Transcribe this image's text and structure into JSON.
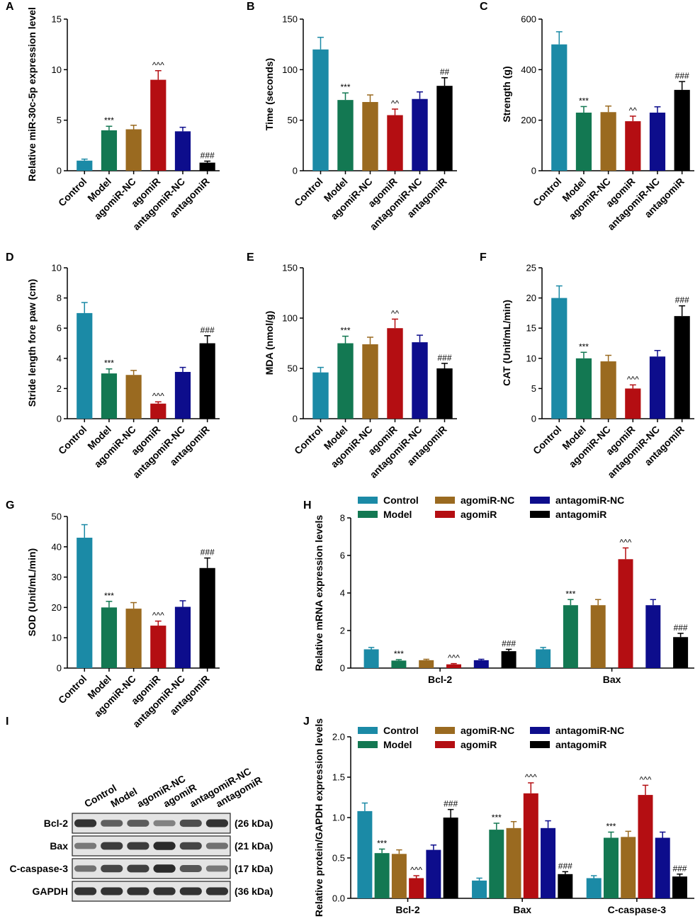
{
  "colors": {
    "Control": "#1b8aa6",
    "Model": "#137852",
    "agomiR-NC": "#9a6a20",
    "agomiR": "#b40e12",
    "antagomiR-NC": "#0d0d8c",
    "antagomiR": "#000000"
  },
  "groups": [
    "Control",
    "Model",
    "agomiR-NC",
    "agomiR",
    "antagomiR-NC",
    "antagomiR"
  ],
  "chart_data": [
    {
      "panel": "A",
      "type": "bar",
      "categories": [
        "Control",
        "Model",
        "agomiR-NC",
        "agomiR",
        "antagomiR-NC",
        "antagomiR"
      ],
      "values": [
        1.0,
        4.0,
        4.1,
        9.0,
        3.9,
        0.8
      ],
      "errors": [
        0.15,
        0.4,
        0.4,
        0.9,
        0.4,
        0.15
      ],
      "labels": [
        "",
        "***",
        "",
        "^^^",
        "",
        "###"
      ],
      "ylabel": "Relative miR-30c-5p expression level",
      "ylim": [
        0,
        15
      ],
      "yticks": [
        0,
        5,
        10,
        15
      ]
    },
    {
      "panel": "B",
      "type": "bar",
      "categories": [
        "Control",
        "Model",
        "agomiR-NC",
        "agomiR",
        "antagomiR-NC",
        "antagomiR"
      ],
      "values": [
        120,
        70,
        68,
        55,
        71,
        84
      ],
      "errors": [
        12,
        7,
        7,
        6,
        7,
        8
      ],
      "labels": [
        "",
        "***",
        "",
        "^^",
        "",
        "##"
      ],
      "ylabel": "Time (seconds)",
      "ylim": [
        0,
        150
      ],
      "yticks": [
        0,
        50,
        100,
        150
      ]
    },
    {
      "panel": "C",
      "type": "bar",
      "categories": [
        "Control",
        "Model",
        "agomiR-NC",
        "agomiR",
        "antagomiR-NC",
        "antagomiR"
      ],
      "values": [
        500,
        230,
        232,
        196,
        230,
        320
      ],
      "errors": [
        50,
        24,
        24,
        20,
        23,
        33
      ],
      "labels": [
        "",
        "***",
        "",
        "^^",
        "",
        "###"
      ],
      "ylabel": "Strength (g)",
      "ylim": [
        0,
        600
      ],
      "yticks": [
        0,
        200,
        400,
        600
      ]
    },
    {
      "panel": "D",
      "type": "bar",
      "categories": [
        "Control",
        "Model",
        "agomiR-NC",
        "agomiR",
        "antagomiR-NC",
        "antagomiR"
      ],
      "values": [
        7.0,
        3.0,
        2.9,
        1.0,
        3.1,
        5.0
      ],
      "errors": [
        0.7,
        0.3,
        0.3,
        0.12,
        0.3,
        0.5
      ],
      "labels": [
        "",
        "***",
        "",
        "^^^",
        "",
        "###"
      ],
      "ylabel": "Stride length fore paw (cm)",
      "ylim": [
        0,
        10
      ],
      "yticks": [
        0,
        2,
        4,
        6,
        8,
        10
      ]
    },
    {
      "panel": "E",
      "type": "bar",
      "categories": [
        "Control",
        "Model",
        "agomiR-NC",
        "agomiR",
        "antagomiR-NC",
        "antagomiR"
      ],
      "values": [
        46,
        75,
        74,
        90,
        76,
        50
      ],
      "errors": [
        5,
        7,
        7,
        9,
        7,
        5
      ],
      "labels": [
        "",
        "***",
        "",
        "^^",
        "",
        "###"
      ],
      "ylabel": "MDA (nmol/g)",
      "ylim": [
        0,
        150
      ],
      "yticks": [
        0,
        50,
        100,
        150
      ]
    },
    {
      "panel": "F",
      "type": "bar",
      "categories": [
        "Control",
        "Model",
        "agomiR-NC",
        "agomiR",
        "antagomiR-NC",
        "antagomiR"
      ],
      "values": [
        20,
        10,
        9.5,
        5,
        10.3,
        17
      ],
      "errors": [
        2,
        1,
        1,
        0.6,
        1,
        1.7
      ],
      "labels": [
        "",
        "***",
        "",
        "^^^",
        "",
        "###"
      ],
      "ylabel": "CAT (Unit/mL/min)",
      "ylim": [
        0,
        25
      ],
      "yticks": [
        0,
        5,
        10,
        15,
        20,
        25
      ]
    },
    {
      "panel": "G",
      "type": "bar",
      "categories": [
        "Control",
        "Model",
        "agomiR-NC",
        "agomiR",
        "antagomiR-NC",
        "antagomiR"
      ],
      "values": [
        43,
        20,
        19.6,
        14,
        20.2,
        33
      ],
      "errors": [
        4.3,
        2,
        2,
        1.5,
        2,
        3.3
      ],
      "labels": [
        "",
        "***",
        "",
        "^^^",
        "",
        "###"
      ],
      "ylabel": "SOD (Unit/mL/min)",
      "ylim": [
        0,
        50
      ],
      "yticks": [
        0,
        10,
        20,
        30,
        40,
        50
      ]
    },
    {
      "panel": "H",
      "type": "bar",
      "categories": [
        "Bcl-2",
        "Bax"
      ],
      "ylabel": "Relative mRNA expression levels",
      "ylim": [
        0,
        8
      ],
      "yticks": [
        0,
        2,
        4,
        6,
        8
      ],
      "legend": [
        "Control",
        "Model",
        "agomiR-NC",
        "agomiR",
        "antagomiR-NC",
        "antagomiR"
      ],
      "series": [
        {
          "name": "Control",
          "values": [
            1.0,
            1.0
          ],
          "errors": [
            0.1,
            0.1
          ],
          "labels": [
            "",
            ""
          ]
        },
        {
          "name": "Model",
          "values": [
            0.4,
            3.35
          ],
          "errors": [
            0.05,
            0.3
          ],
          "labels": [
            "***",
            "***"
          ]
        },
        {
          "name": "agomiR-NC",
          "values": [
            0.42,
            3.35
          ],
          "errors": [
            0.05,
            0.3
          ],
          "labels": [
            "",
            ""
          ]
        },
        {
          "name": "agomiR",
          "values": [
            0.2,
            5.8
          ],
          "errors": [
            0.04,
            0.6
          ],
          "labels": [
            "^^^",
            "^^^"
          ]
        },
        {
          "name": "antagomiR-NC",
          "values": [
            0.42,
            3.35
          ],
          "errors": [
            0.05,
            0.3
          ],
          "labels": [
            "",
            ""
          ]
        },
        {
          "name": "antagomiR",
          "values": [
            0.9,
            1.65
          ],
          "errors": [
            0.1,
            0.2
          ],
          "labels": [
            "###",
            "###"
          ]
        }
      ]
    },
    {
      "panel": "J",
      "type": "bar",
      "categories": [
        "Bcl-2",
        "Bax",
        "C-caspase-3"
      ],
      "ylabel": "Relative protein/GAPDH expression levels",
      "ylim": [
        0,
        2.0
      ],
      "yticks": [
        "0.0",
        "0.5",
        "1.0",
        "1.5",
        "2.0"
      ],
      "legend": [
        "Control",
        "Model",
        "agomiR-NC",
        "agomiR",
        "antagomiR-NC",
        "antagomiR"
      ],
      "series": [
        {
          "name": "Control",
          "values": [
            1.08,
            0.22,
            0.25
          ],
          "errors": [
            0.1,
            0.03,
            0.03
          ],
          "labels": [
            "",
            "",
            ""
          ]
        },
        {
          "name": "Model",
          "values": [
            0.56,
            0.85,
            0.75
          ],
          "errors": [
            0.05,
            0.08,
            0.07
          ],
          "labels": [
            "***",
            "***",
            "***"
          ]
        },
        {
          "name": "agomiR-NC",
          "values": [
            0.55,
            0.87,
            0.76
          ],
          "errors": [
            0.05,
            0.08,
            0.07
          ],
          "labels": [
            "",
            "",
            ""
          ]
        },
        {
          "name": "agomiR",
          "values": [
            0.25,
            1.3,
            1.28
          ],
          "errors": [
            0.03,
            0.13,
            0.12
          ],
          "labels": [
            "^^^",
            "^^^",
            "^^^"
          ]
        },
        {
          "name": "antagomiR-NC",
          "values": [
            0.6,
            0.87,
            0.75
          ],
          "errors": [
            0.06,
            0.09,
            0.07
          ],
          "labels": [
            "",
            "",
            ""
          ]
        },
        {
          "name": "antagomiR",
          "values": [
            1.0,
            0.3,
            0.27
          ],
          "errors": [
            0.1,
            0.03,
            0.03
          ],
          "labels": [
            "###",
            "###",
            "###"
          ]
        }
      ]
    }
  ],
  "western_blot": {
    "panel": "I",
    "lanes": [
      "Control",
      "Model",
      "agomiR-NC",
      "agomiR",
      "antagomiR-NC",
      "antagomiR"
    ],
    "rows": [
      {
        "protein": "Bcl-2",
        "size": "(26 kDa)",
        "intensity": [
          0.85,
          0.6,
          0.62,
          0.4,
          0.7,
          0.85
        ]
      },
      {
        "protein": "Bax",
        "size": "(21 kDa)",
        "intensity": [
          0.45,
          0.8,
          0.8,
          0.9,
          0.75,
          0.5
        ]
      },
      {
        "protein": "C-caspase-3",
        "size": "(17 kDa)",
        "intensity": [
          0.5,
          0.75,
          0.78,
          0.9,
          0.65,
          0.45
        ]
      },
      {
        "protein": "GAPDH",
        "size": "(36 kDa)",
        "intensity": [
          0.85,
          0.85,
          0.85,
          0.85,
          0.85,
          0.85
        ]
      }
    ]
  }
}
